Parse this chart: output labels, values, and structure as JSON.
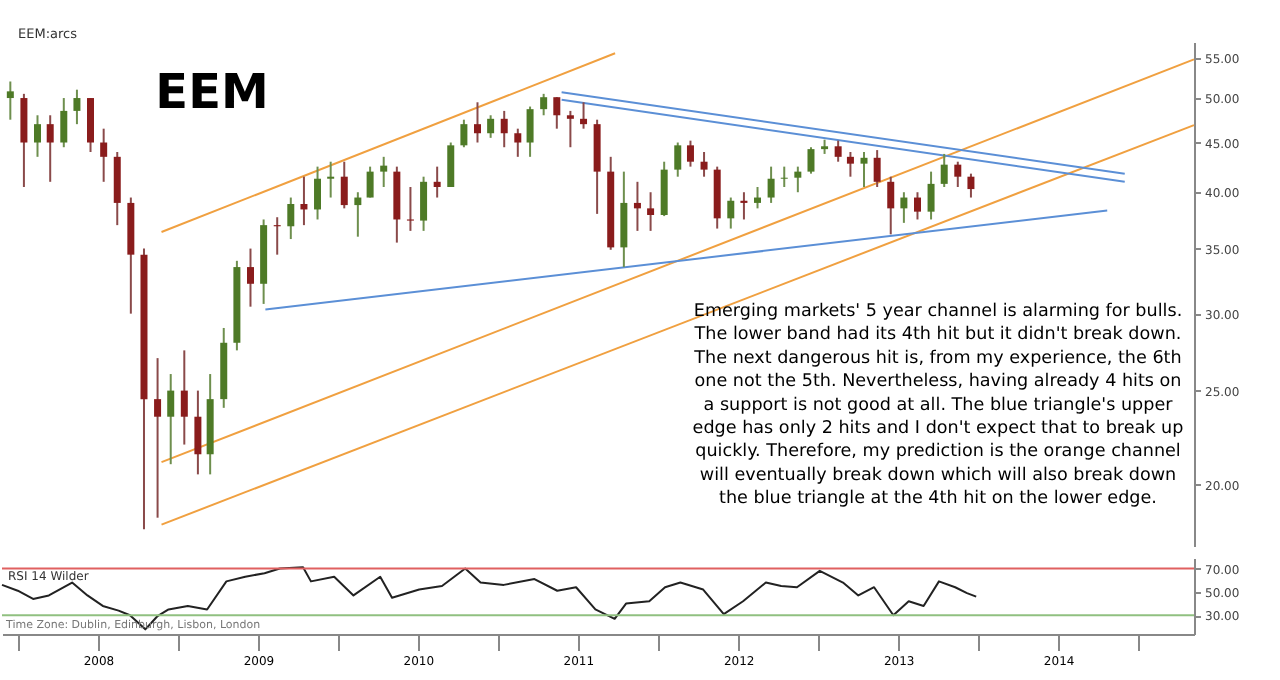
{
  "chart_data": [
    {
      "type": "candlestick",
      "title": "EEM",
      "log": true,
      "grid": false,
      "tick_labels": "y",
      "annotations": [
        "EEM:arcs",
        "Emerging markets' 5 year channel is alarming for bulls. The lower band had its 4th hit but it didn't break down. The next dangerous hit is, from my experience, the 6th one not the 5th. Nevertheless, having already 4 hits on a support is not good at all. The blue triangle's upper edge has only 2 hits and I don't expect that to break up quickly. Therefore, my prediction is the orange channel will eventually break down which will also break down the blue triangle at the 4th hit on the lower edge."
      ],
      "xlim": [
        "2007-11-26",
        "2015-05-08"
      ],
      "ylim": [
        17.3,
        57.1
      ],
      "yticks": [
        {
          "value": 20,
          "label": "20.00"
        },
        {
          "value": 25,
          "label": "25.00"
        },
        {
          "value": 30,
          "label": "30.00"
        },
        {
          "value": 35,
          "label": "35.00"
        },
        {
          "value": 40,
          "label": "40.00"
        },
        {
          "value": 45,
          "label": "45.00"
        },
        {
          "value": 50,
          "label": "50.00"
        },
        {
          "value": 55,
          "label": "55.00"
        }
      ],
      "x": [
        "2007-12-15",
        "2008-01-15",
        "2008-02-15",
        "2008-03-15",
        "2008-04-15",
        "2008-05-15",
        "2008-06-15",
        "2008-07-15",
        "2008-08-15",
        "2008-09-15",
        "2008-10-15",
        "2008-11-15",
        "2008-12-15",
        "2009-01-15",
        "2009-02-15",
        "2009-03-15",
        "2009-04-15",
        "2009-05-15",
        "2009-06-15",
        "2009-07-15",
        "2009-08-15",
        "2009-09-15",
        "2009-10-15",
        "2009-11-15",
        "2009-12-15",
        "2010-01-15",
        "2010-02-15",
        "2010-03-15",
        "2010-04-15",
        "2010-05-15",
        "2010-06-15",
        "2010-07-15",
        "2010-08-15",
        "2010-09-15",
        "2010-10-15",
        "2010-11-15",
        "2010-12-15",
        "2011-01-15",
        "2011-02-15",
        "2011-03-15",
        "2011-04-15",
        "2011-05-15",
        "2011-06-15",
        "2011-07-15",
        "2011-08-15",
        "2011-09-15",
        "2011-10-15",
        "2011-11-15",
        "2011-12-15",
        "2012-01-15",
        "2012-02-15",
        "2012-03-15",
        "2012-04-15",
        "2012-05-15",
        "2012-06-15",
        "2012-07-15",
        "2012-08-15",
        "2012-09-15",
        "2012-10-15",
        "2012-11-15",
        "2012-12-15",
        "2013-01-15",
        "2013-02-15",
        "2013-03-15",
        "2013-04-15",
        "2013-05-15",
        "2013-06-15",
        "2013-07-15",
        "2013-08-15",
        "2013-09-15",
        "2013-10-15",
        "2013-11-15",
        "2013-12-15"
      ],
      "ohlc": [
        [
          50,
          52,
          47.5,
          50.8
        ],
        [
          50,
          50.5,
          40.5,
          45
        ],
        [
          45,
          48,
          43.5,
          47
        ],
        [
          47,
          48,
          41,
          45
        ],
        [
          45,
          50,
          44.5,
          48.5
        ],
        [
          48.5,
          51,
          47,
          50
        ],
        [
          50,
          50,
          44,
          45
        ],
        [
          45,
          46.5,
          41,
          43.5
        ],
        [
          43.5,
          44,
          37,
          39
        ],
        [
          39,
          39.5,
          30,
          34.5
        ],
        [
          34.5,
          35,
          18,
          24.5
        ],
        [
          24.5,
          27,
          18.5,
          23.5
        ],
        [
          23.5,
          26,
          21,
          25
        ],
        [
          25,
          27.5,
          22,
          23.5
        ],
        [
          23.5,
          25,
          20.5,
          21.5
        ],
        [
          21.5,
          26,
          20.5,
          24.5
        ],
        [
          24.5,
          29,
          24,
          28
        ],
        [
          28,
          34,
          27.5,
          33.5
        ],
        [
          33.5,
          35,
          30.5,
          32.2
        ],
        [
          32.2,
          37.5,
          30.7,
          37
        ],
        [
          37,
          37.7,
          34.5,
          36.9
        ],
        [
          36.9,
          39.5,
          35.8,
          38.9
        ],
        [
          38.9,
          41.5,
          37,
          38.4
        ],
        [
          38.4,
          42.5,
          37.5,
          41.3
        ],
        [
          41.3,
          43,
          39.5,
          41.5
        ],
        [
          41.5,
          43,
          38.5,
          38.8
        ],
        [
          38.8,
          40,
          36,
          39.5
        ],
        [
          39.5,
          42.5,
          39.5,
          42
        ],
        [
          42,
          43.5,
          40.5,
          42.6
        ],
        [
          42,
          42.5,
          35.5,
          37.5
        ],
        [
          37.5,
          40.5,
          36.5,
          37.4
        ],
        [
          37.4,
          41.5,
          36.5,
          41
        ],
        [
          41,
          42.5,
          39.5,
          40.5
        ],
        [
          40.5,
          45,
          40.5,
          44.7
        ],
        [
          44.7,
          47.5,
          44.5,
          47
        ],
        [
          47,
          49.5,
          45,
          46
        ],
        [
          46,
          48,
          45.5,
          47.6
        ],
        [
          47.6,
          48.5,
          44.5,
          46
        ],
        [
          46,
          46.5,
          43.5,
          45
        ],
        [
          45,
          49,
          43.5,
          48.7
        ],
        [
          48.7,
          50.5,
          48,
          50.1
        ],
        [
          50.1,
          50.1,
          46.5,
          48
        ],
        [
          48,
          48.5,
          44.5,
          47.6
        ],
        [
          47.6,
          49.5,
          46.5,
          47
        ],
        [
          47,
          47.5,
          38,
          42
        ],
        [
          42,
          43.5,
          34.9,
          35.1
        ],
        [
          35.1,
          42,
          33.5,
          39
        ],
        [
          39,
          41,
          36.5,
          38.5
        ],
        [
          38.5,
          40,
          36.5,
          37.9
        ],
        [
          37.9,
          43,
          37.8,
          42.2
        ],
        [
          42.2,
          45,
          41.5,
          44.7
        ],
        [
          44.7,
          45.2,
          42.5,
          43
        ],
        [
          43,
          44,
          41.5,
          42.2
        ],
        [
          42.2,
          42.5,
          36.7,
          37.6
        ],
        [
          37.6,
          39.5,
          36.7,
          39.2
        ],
        [
          39.2,
          40,
          37.5,
          39
        ],
        [
          39,
          40.5,
          38.5,
          39.5
        ],
        [
          39.5,
          42.5,
          39,
          41.3
        ],
        [
          41.3,
          42.5,
          40.5,
          41.4
        ],
        [
          41.4,
          42.5,
          40,
          42
        ],
        [
          42,
          44.5,
          41.8,
          44.3
        ],
        [
          44.3,
          45.3,
          43.8,
          44.6
        ],
        [
          44.6,
          45.2,
          43,
          43.5
        ],
        [
          43.5,
          44,
          41.5,
          42.8
        ],
        [
          42.8,
          44,
          40.5,
          43.4
        ],
        [
          43.4,
          44.2,
          40.5,
          41
        ],
        [
          41,
          41.5,
          36.2,
          38.5
        ],
        [
          38.5,
          40,
          37.2,
          39.5
        ],
        [
          39.5,
          40,
          37.5,
          38.2
        ],
        [
          38.2,
          42,
          37.5,
          40.8
        ],
        [
          40.8,
          43.8,
          40.5,
          42.7
        ],
        [
          42.7,
          43,
          40.5,
          41.5
        ],
        [
          41.5,
          41.8,
          39.5,
          40.3
        ]
      ],
      "series": [
        {
          "type": "line",
          "color": "#f0a040",
          "x": [
            "2008-11-24",
            "2011-09-25"
          ],
          "values": [
            36.4,
            55.6
          ]
        },
        {
          "type": "line",
          "color": "#f0a040",
          "x": [
            "2008-11-24",
            "2015-05-08"
          ],
          "values": [
            21.1,
            54.8
          ]
        },
        {
          "type": "line",
          "color": "#f0a040",
          "x": [
            "2008-11-24",
            "2015-05-08"
          ],
          "values": [
            18.2,
            46.9
          ]
        },
        {
          "type": "line",
          "color": "#5b8fd6",
          "x": [
            "2011-05-26",
            "2014-12-01"
          ],
          "values": [
            50.7,
            41.8
          ]
        },
        {
          "type": "line",
          "color": "#5b8fd6",
          "x": [
            "2011-05-26",
            "2014-12-01"
          ],
          "values": [
            49.8,
            41.0
          ]
        },
        {
          "type": "line",
          "color": "#5b8fd6",
          "x": [
            "2009-07-19",
            "2014-10-22"
          ],
          "values": [
            30.3,
            38.3
          ]
        }
      ]
    },
    {
      "type": "line",
      "title": "RSI 14 Wilder",
      "color": "#222222",
      "grid": false,
      "annotations": [
        "Time Zone: Dublin, Edinburgh, Lisbon, London"
      ],
      "xlim": [
        "2007-11-26",
        "2015-05-08"
      ],
      "ylim": [
        14,
        79
      ],
      "yticks": [
        {
          "value": 30,
          "label": "30.00"
        },
        {
          "value": 50,
          "label": "50.00"
        },
        {
          "value": 70,
          "label": "70.00"
        }
      ],
      "xticks": [
        {
          "value": "2008-01-01",
          "label": null
        },
        {
          "value": "2008-07-02",
          "label": "2008"
        },
        {
          "value": "2009-01-01",
          "label": null
        },
        {
          "value": "2009-07-02",
          "label": "2009"
        },
        {
          "value": "2010-01-01",
          "label": null
        },
        {
          "value": "2010-07-02",
          "label": "2010"
        },
        {
          "value": "2011-01-01",
          "label": null
        },
        {
          "value": "2011-07-02",
          "label": "2011"
        },
        {
          "value": "2012-01-01",
          "label": null
        },
        {
          "value": "2012-07-02",
          "label": "2012"
        },
        {
          "value": "2013-01-01",
          "label": null
        },
        {
          "value": "2013-07-02",
          "label": "2013"
        },
        {
          "value": "2014-01-01",
          "label": null
        },
        {
          "value": "2014-07-02",
          "label": "2014"
        },
        {
          "value": "2015-01-01",
          "label": null
        }
      ],
      "ref_lines": [
        {
          "axis": "y",
          "value": 70,
          "color": "#e06060"
        },
        {
          "axis": "y",
          "value": 30,
          "color": "#90c080"
        }
      ],
      "x": [
        "2007-11-26",
        "2008-01-01",
        "2008-02-05",
        "2008-03-12",
        "2008-05-04",
        "2008-06-08",
        "2008-07-13",
        "2008-08-18",
        "2008-09-13",
        "2008-10-18",
        "2008-11-14",
        "2008-12-10",
        "2009-01-23",
        "2009-03-08",
        "2009-04-21",
        "2009-06-03",
        "2009-07-17",
        "2009-08-21",
        "2009-10-13",
        "2009-10-31",
        "2009-12-23",
        "2010-02-05",
        "2010-04-07",
        "2010-05-04",
        "2010-07-05",
        "2010-08-26",
        "2010-10-18",
        "2010-11-22",
        "2011-01-14",
        "2011-03-25",
        "2011-05-16",
        "2011-06-28",
        "2011-08-11",
        "2011-09-24",
        "2011-10-20",
        "2011-12-12",
        "2012-01-17",
        "2012-02-21",
        "2012-04-13",
        "2012-05-30",
        "2012-07-13",
        "2012-09-03",
        "2012-10-08",
        "2012-11-13",
        "2013-01-04",
        "2013-02-26",
        "2013-04-02",
        "2013-05-08",
        "2013-06-21",
        "2013-07-26",
        "2013-08-29",
        "2013-10-03",
        "2013-11-09",
        "2013-12-06",
        "2013-12-27"
      ],
      "values": [
        56,
        51,
        44,
        47,
        58,
        47,
        38,
        34,
        30,
        18,
        29,
        35,
        38,
        35,
        59,
        63,
        66,
        70,
        71,
        59,
        63,
        47,
        63,
        45,
        52,
        55,
        70,
        58,
        56,
        61,
        51,
        54,
        35,
        27,
        40,
        42,
        54,
        58,
        52,
        31,
        42,
        58,
        55,
        54,
        68,
        58,
        47,
        54,
        30,
        42,
        38,
        59,
        54,
        49,
        46
      ]
    }
  ]
}
